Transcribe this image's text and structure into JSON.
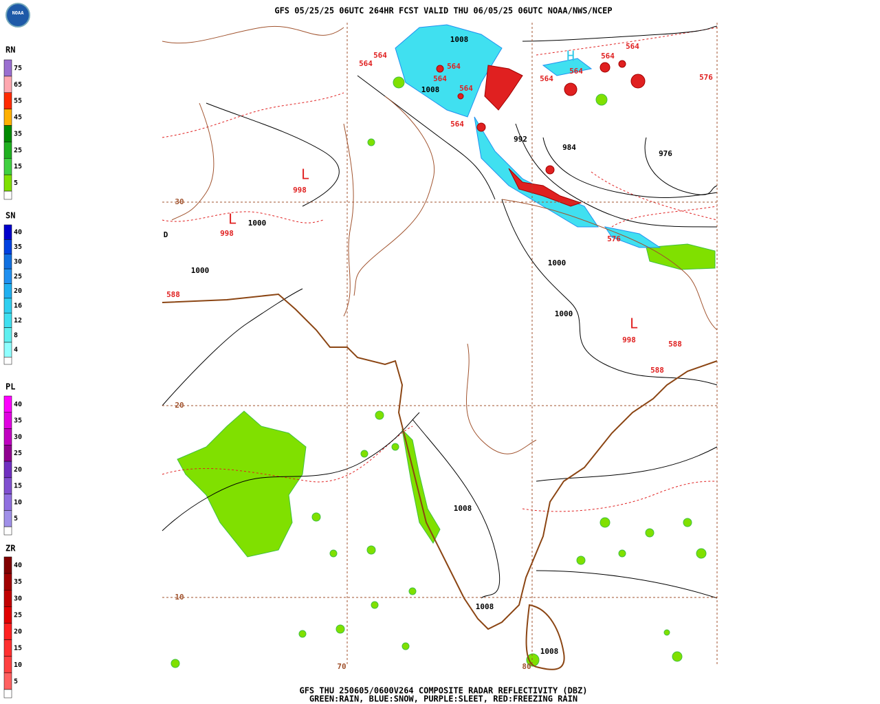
{
  "header": {
    "title": "GFS 05/25/25 06UTC 264HR FCST VALID THU 06/05/25 06UTC NOAA/NWS/NCEP",
    "logo": "NOAA"
  },
  "legend": [
    {
      "name": "RN",
      "levels": [
        {
          "label": 75,
          "color": "#9a6fd0"
        },
        {
          "label": 65,
          "color": "#ffa8b0"
        },
        {
          "label": 55,
          "color": "#ff2a00"
        },
        {
          "label": 45,
          "color": "#ffb000"
        },
        {
          "label": 35,
          "color": "#008a00"
        },
        {
          "label": 25,
          "color": "#20b020"
        },
        {
          "label": 15,
          "color": "#40d040"
        },
        {
          "label": 5,
          "color": "#80e000"
        }
      ]
    },
    {
      "name": "SN",
      "levels": [
        {
          "label": 40,
          "color": "#0000cc"
        },
        {
          "label": 35,
          "color": "#0040e0"
        },
        {
          "label": 30,
          "color": "#1070e0"
        },
        {
          "label": 25,
          "color": "#2090f0"
        },
        {
          "label": 20,
          "color": "#20b0f0"
        },
        {
          "label": 16,
          "color": "#30d0f0"
        },
        {
          "label": 12,
          "color": "#40e0f0"
        },
        {
          "label": 8,
          "color": "#60f0f0"
        },
        {
          "label": 4,
          "color": "#90ffff"
        }
      ]
    },
    {
      "name": "PL",
      "levels": [
        {
          "label": 40,
          "color": "#ff00ff"
        },
        {
          "label": 35,
          "color": "#e000e0"
        },
        {
          "label": 30,
          "color": "#c000c0"
        },
        {
          "label": 25,
          "color": "#900090"
        },
        {
          "label": 20,
          "color": "#7030c0"
        },
        {
          "label": 15,
          "color": "#8050d0"
        },
        {
          "label": 10,
          "color": "#9070e0"
        },
        {
          "label": 5,
          "color": "#a090e8"
        }
      ]
    },
    {
      "name": "ZR",
      "levels": [
        {
          "label": 40,
          "color": "#800000"
        },
        {
          "label": 35,
          "color": "#a00000"
        },
        {
          "label": 30,
          "color": "#c00000"
        },
        {
          "label": 25,
          "color": "#e00000"
        },
        {
          "label": 20,
          "color": "#ff2020"
        },
        {
          "label": 15,
          "color": "#ff3030"
        },
        {
          "label": 10,
          "color": "#ff4040"
        },
        {
          "label": 5,
          "color": "#ff6060"
        }
      ]
    }
  ],
  "map": {
    "labels": [
      "1008",
      "1008",
      "564",
      "564",
      "564",
      "564",
      "564",
      "564",
      "H",
      "564",
      "564",
      "564",
      "564",
      "576",
      "992",
      "984",
      "976",
      "L",
      "998",
      "L",
      "998",
      "1000",
      "1000",
      "588",
      "1000",
      "1000",
      "L",
      "998",
      "588",
      "588",
      "576",
      "1008",
      "1008",
      "1008",
      "30",
      "20",
      "10",
      "70",
      "80",
      "D"
    ]
  },
  "footer": {
    "line1": "GFS THU 250605/0600V264 COMPOSITE RADAR REFLECTIVITY (DBZ)",
    "line2": "GREEN:RAIN, BLUE:SNOW, PURPLE:SLEET, RED:FREEZING RAIN"
  }
}
